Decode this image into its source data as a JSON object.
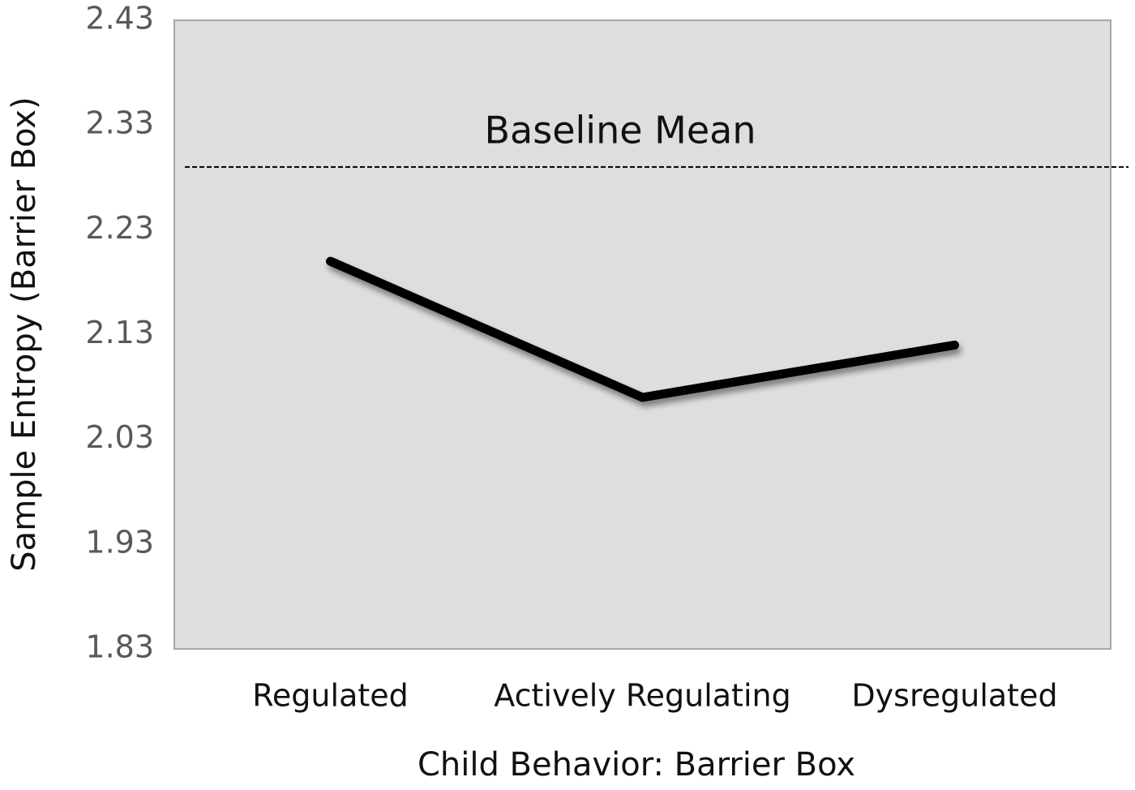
{
  "chart_data": {
    "type": "line",
    "x_label": "Child Behavior: Barrier Box",
    "y_label": "Sample Entropy  (Barrier Box)",
    "categories": [
      "Regulated",
      "Actively Regulating",
      "Dysregulated"
    ],
    "values": [
      2.2,
      2.07,
      2.12
    ],
    "color": "#000000",
    "ylim": [
      1.83,
      2.43
    ],
    "yticks": [
      1.83,
      1.93,
      2.03,
      2.13,
      2.23,
      2.33,
      2.43
    ],
    "grid": false,
    "reference_line": {
      "label": "Baseline Mean",
      "value": 2.29
    }
  }
}
